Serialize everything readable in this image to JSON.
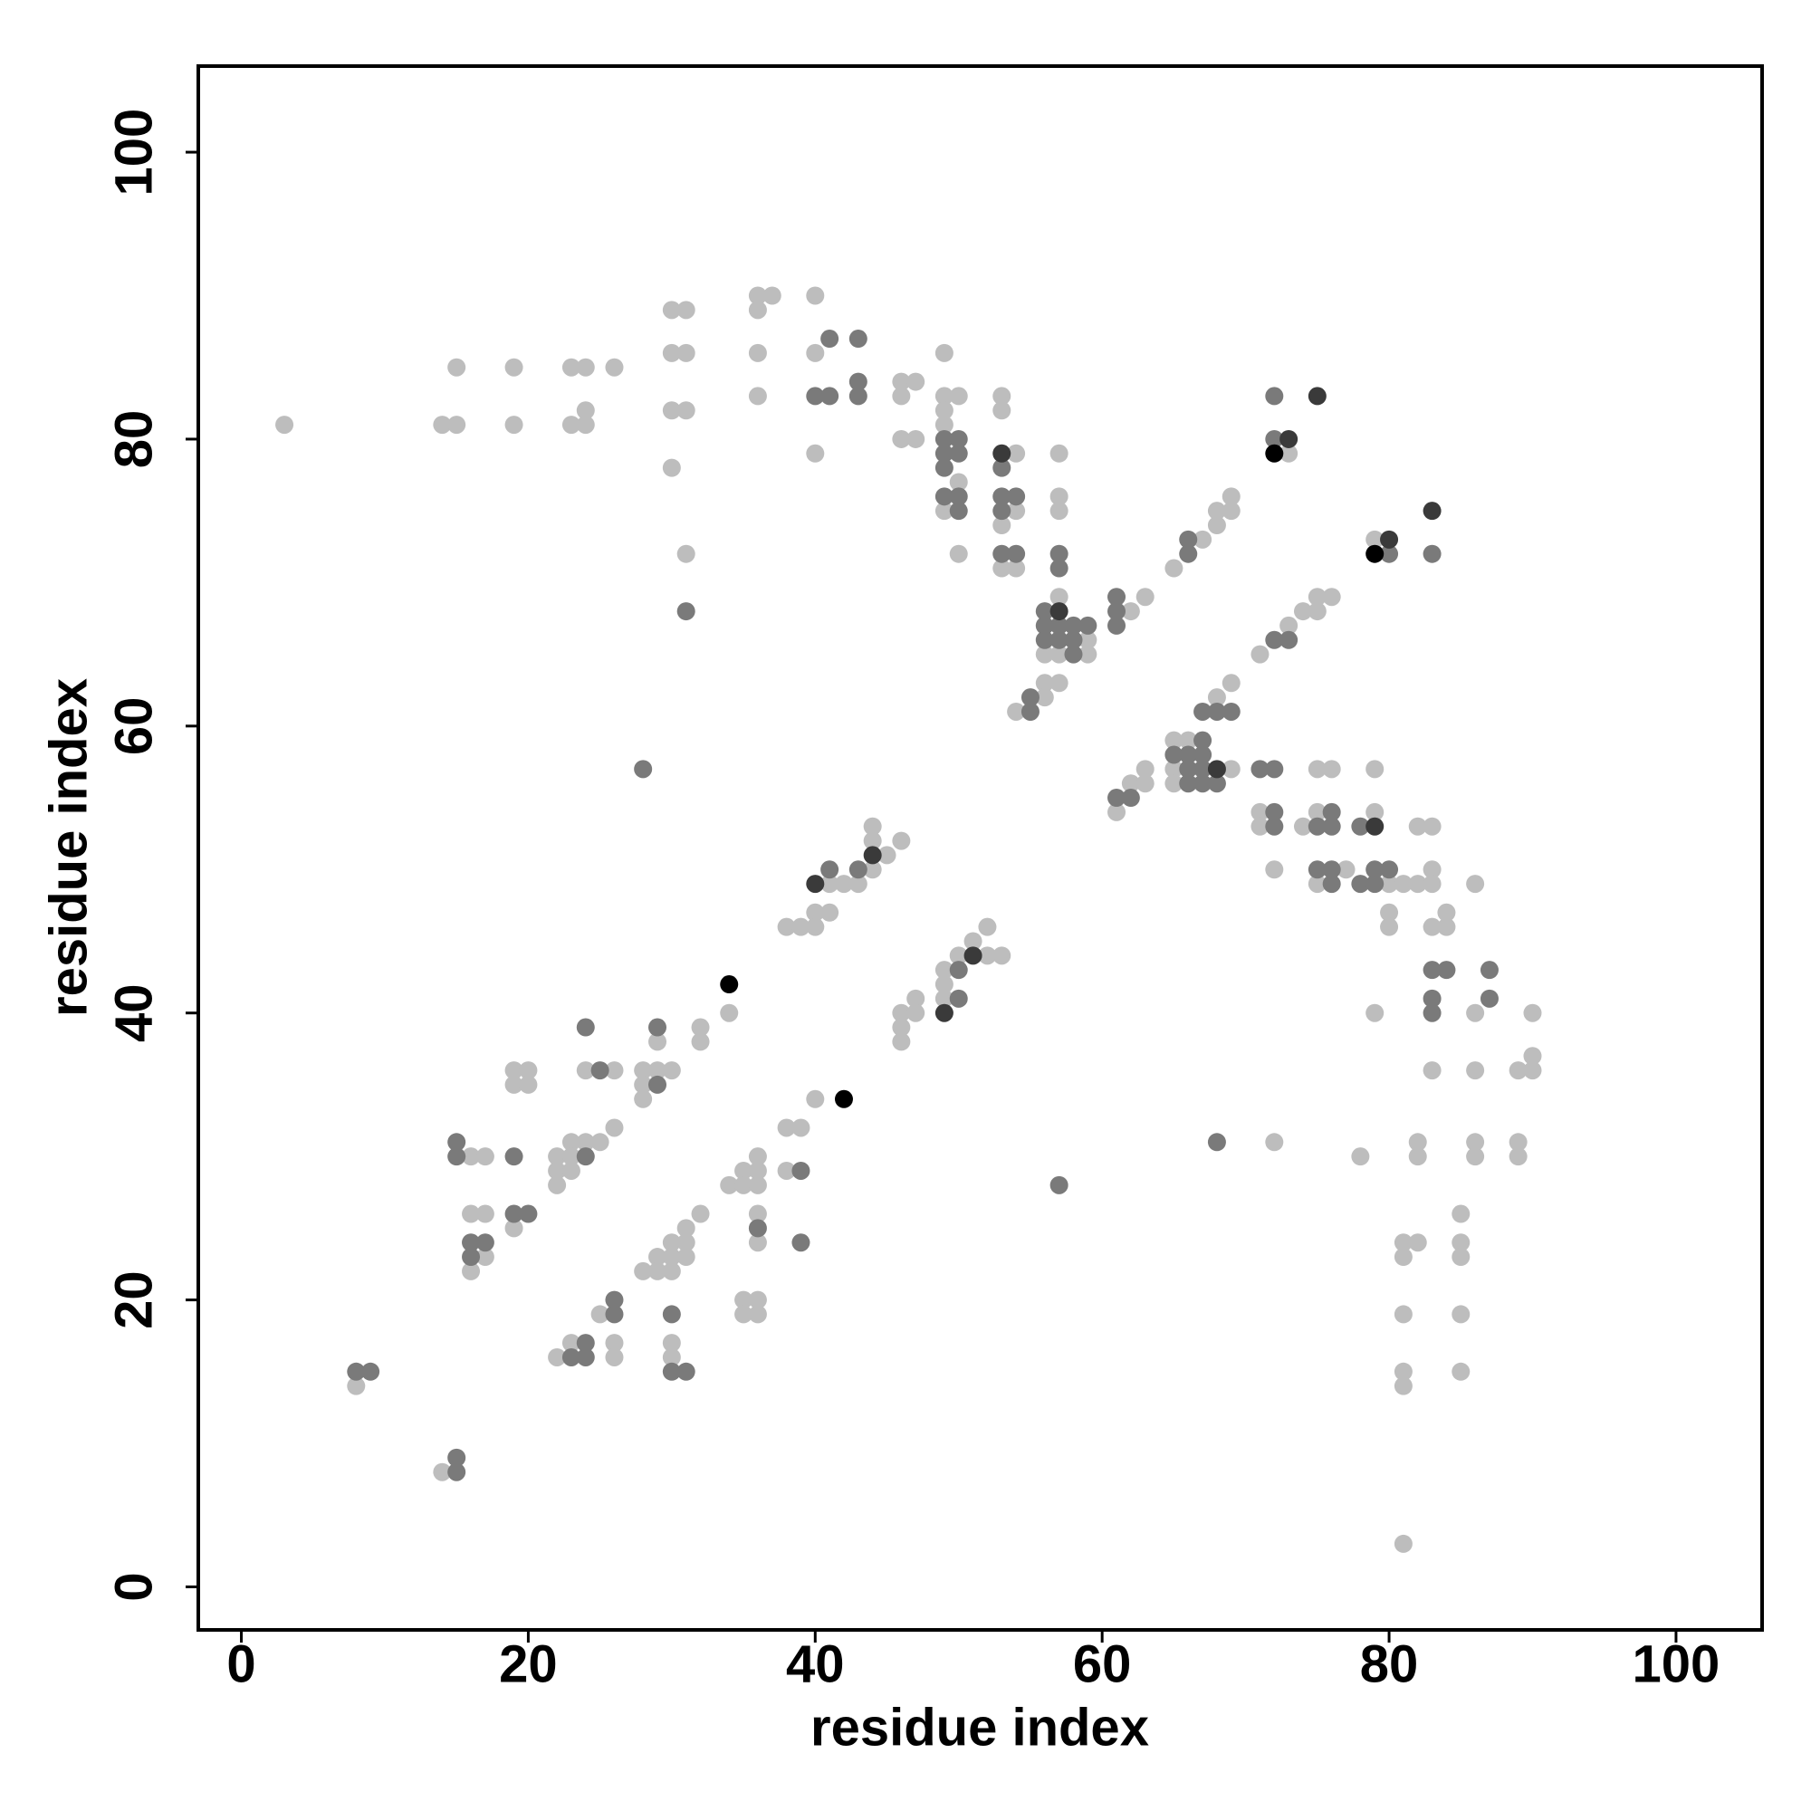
{
  "chart_data": {
    "type": "scatter",
    "x_label": "residue index",
    "y_label": "residue index",
    "xlim": [
      -3,
      106
    ],
    "ylim": [
      -3,
      106
    ],
    "xticks": [
      0,
      20,
      40,
      60,
      80,
      100
    ],
    "yticks": [
      0,
      20,
      40,
      60,
      80,
      100
    ],
    "grid": false,
    "series": [
      {
        "color": "#bdbdbd",
        "x": [
          3,
          14,
          15,
          19,
          23,
          24,
          15,
          19,
          23,
          24,
          26,
          24,
          30,
          31,
          30,
          31,
          30,
          31,
          30,
          31,
          36,
          37,
          40,
          36,
          36,
          40,
          36,
          40,
          46,
          47,
          46,
          46,
          47,
          49,
          49,
          49,
          49,
          49,
          50,
          50,
          50,
          53,
          53,
          53,
          53,
          54,
          54,
          54,
          57,
          57,
          57,
          57,
          57,
          57,
          56,
          56,
          56,
          59,
          59,
          54,
          62,
          63,
          65,
          67,
          68,
          68,
          69,
          69,
          73,
          79,
          71,
          73,
          74,
          75,
          75,
          76,
          69,
          68,
          65,
          65,
          65,
          66,
          69,
          61,
          62,
          63,
          63,
          71,
          71,
          72,
          74,
          75,
          75,
          75,
          76,
          77,
          79,
          79,
          80,
          80,
          80,
          81,
          82,
          82,
          83,
          83,
          83,
          83,
          83,
          84,
          84,
          86,
          86,
          86,
          86,
          86,
          89,
          89,
          89,
          90,
          90,
          90,
          79,
          72,
          78,
          82,
          82,
          81,
          81,
          81,
          81,
          81,
          81,
          82,
          85,
          85,
          85,
          85,
          85,
          41,
          42,
          43,
          44,
          44,
          44,
          45,
          46,
          38,
          39,
          40,
          40,
          41,
          34,
          32,
          32,
          29,
          29,
          28,
          28,
          28,
          30,
          24,
          26,
          19,
          19,
          20,
          20,
          22,
          22,
          22,
          23,
          23,
          23,
          24,
          25,
          26,
          16,
          16,
          16,
          17,
          17,
          17,
          19,
          8,
          14,
          49,
          49,
          49,
          50,
          51,
          52,
          52,
          53,
          46,
          46,
          46,
          47,
          47,
          40,
          38,
          38,
          39,
          34,
          35,
          35,
          35,
          35,
          36,
          36,
          36,
          36,
          36,
          36,
          36,
          28,
          29,
          29,
          30,
          30,
          30,
          30,
          30,
          31,
          31,
          31,
          32,
          22,
          23,
          25,
          26,
          26
        ],
        "values": [
          81,
          81,
          81,
          81,
          81,
          81,
          85,
          85,
          85,
          85,
          85,
          82,
          89,
          89,
          86,
          86,
          82,
          82,
          78,
          72,
          90,
          90,
          90,
          89,
          86,
          86,
          83,
          79,
          84,
          84,
          83,
          80,
          80,
          86,
          83,
          82,
          81,
          75,
          83,
          77,
          72,
          83,
          82,
          74,
          71,
          79,
          75,
          71,
          79,
          76,
          75,
          69,
          65,
          63,
          65,
          63,
          62,
          66,
          65,
          61,
          68,
          69,
          71,
          73,
          75,
          74,
          76,
          75,
          79,
          73,
          65,
          67,
          68,
          69,
          68,
          69,
          63,
          62,
          59,
          57,
          56,
          59,
          57,
          54,
          56,
          57,
          56,
          54,
          53,
          50,
          53,
          57,
          54,
          49,
          57,
          50,
          57,
          54,
          49,
          47,
          46,
          49,
          53,
          49,
          53,
          50,
          49,
          46,
          36,
          47,
          46,
          49,
          40,
          36,
          31,
          30,
          36,
          31,
          30,
          40,
          37,
          36,
          40,
          31,
          30,
          31,
          30,
          24,
          23,
          19,
          15,
          14,
          3,
          24,
          26,
          24,
          23,
          19,
          15,
          49,
          49,
          49,
          53,
          52,
          50,
          51,
          52,
          46,
          46,
          47,
          46,
          47,
          40,
          39,
          38,
          38,
          36,
          36,
          35,
          34,
          36,
          36,
          36,
          36,
          35,
          36,
          35,
          30,
          29,
          28,
          31,
          30,
          29,
          31,
          31,
          32,
          30,
          26,
          22,
          30,
          26,
          23,
          25,
          14,
          8,
          43,
          42,
          41,
          44,
          45,
          46,
          44,
          44,
          40,
          39,
          38,
          41,
          40,
          34,
          32,
          29,
          32,
          28,
          29,
          28,
          20,
          19,
          30,
          29,
          28,
          26,
          24,
          20,
          19,
          22,
          23,
          22,
          24,
          23,
          22,
          17,
          16,
          25,
          24,
          23,
          26,
          16,
          17,
          19,
          17,
          16
        ]
      },
      {
        "color": "#7a7a7a",
        "x": [
          31,
          40,
          41,
          41,
          43,
          43,
          43,
          49,
          49,
          49,
          49,
          50,
          50,
          50,
          50,
          53,
          53,
          53,
          53,
          54,
          54,
          57,
          57,
          57,
          57,
          56,
          56,
          56,
          58,
          58,
          58,
          59,
          55,
          55,
          61,
          61,
          61,
          66,
          66,
          72,
          72,
          80,
          83,
          72,
          73,
          68,
          69,
          67,
          65,
          66,
          66,
          66,
          67,
          67,
          67,
          67,
          68,
          61,
          62,
          71,
          72,
          72,
          72,
          75,
          75,
          76,
          76,
          76,
          76,
          78,
          78,
          79,
          79,
          80,
          83,
          83,
          83,
          84,
          87,
          87,
          68,
          57,
          28,
          41,
          43,
          29,
          29,
          24,
          25,
          24,
          15,
          15,
          16,
          16,
          17,
          19,
          19,
          20,
          8,
          9,
          15,
          15,
          50,
          50,
          39,
          39,
          36,
          30,
          30,
          31,
          23,
          24,
          24,
          26,
          26
        ],
        "values": [
          68,
          83,
          83,
          87,
          87,
          84,
          83,
          80,
          79,
          78,
          76,
          80,
          79,
          76,
          75,
          78,
          76,
          75,
          72,
          76,
          72,
          72,
          71,
          67,
          66,
          68,
          67,
          66,
          67,
          66,
          65,
          67,
          62,
          61,
          69,
          68,
          67,
          73,
          72,
          83,
          80,
          72,
          72,
          66,
          66,
          61,
          61,
          61,
          58,
          58,
          57,
          56,
          59,
          58,
          57,
          56,
          56,
          55,
          55,
          57,
          57,
          54,
          53,
          53,
          50,
          54,
          53,
          50,
          49,
          53,
          49,
          50,
          49,
          50,
          43,
          41,
          40,
          43,
          43,
          41,
          31,
          28,
          57,
          50,
          50,
          39,
          35,
          39,
          36,
          30,
          31,
          30,
          24,
          23,
          24,
          30,
          26,
          26,
          15,
          15,
          9,
          8,
          43,
          41,
          29,
          24,
          25,
          19,
          15,
          15,
          16,
          17,
          16,
          20,
          19
        ]
      },
      {
        "color": "#3a3a3a",
        "x": [
          53,
          57,
          73,
          75,
          80,
          83,
          68,
          79,
          40,
          44,
          49,
          51
        ],
        "values": [
          79,
          68,
          80,
          83,
          73,
          75,
          57,
          53,
          49,
          51,
          40,
          44
        ]
      },
      {
        "color": "#000000",
        "x": [
          72,
          79,
          34,
          42
        ],
        "values": [
          79,
          72,
          42,
          34
        ]
      }
    ]
  }
}
